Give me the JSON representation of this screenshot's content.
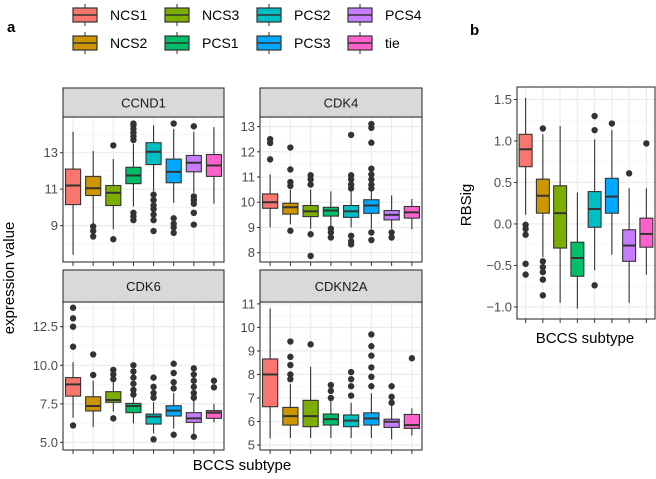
{
  "figure": {
    "panel_a_label": "a",
    "panel_b_label": "b"
  },
  "legend": {
    "placement": "top",
    "items": [
      {
        "label": "NCS1",
        "color": "#F8766D"
      },
      {
        "label": "NCS2",
        "color": "#CD9600"
      },
      {
        "label": "NCS3",
        "color": "#7CAE00"
      },
      {
        "label": "PCS1",
        "color": "#00BE67"
      },
      {
        "label": "PCS2",
        "color": "#00BFC4"
      },
      {
        "label": "PCS3",
        "color": "#00A9FF"
      },
      {
        "label": "PCS4",
        "color": "#C77CFF"
      },
      {
        "label": "tie",
        "color": "#FF61CC"
      }
    ]
  },
  "chart_data": [
    {
      "type": "box",
      "title": "CCND1",
      "panel": "a",
      "ylabel": "expression value",
      "xlabel": "BCCS subtype",
      "categories": [
        "NCS1",
        "NCS2",
        "NCS3",
        "PCS1",
        "PCS2",
        "PCS3",
        "PCS4",
        "tie"
      ],
      "ylim": [
        7.0,
        14.96
      ],
      "yticks": [
        9,
        11,
        13
      ],
      "yticklabels": [
        "9",
        "11",
        "13"
      ],
      "grid": true,
      "boxes": [
        [
          7.4,
          10.15,
          11.2,
          12.1,
          14.15,
          []
        ],
        [
          9.05,
          10.65,
          11.05,
          11.7,
          13.1,
          [
            8.95,
            8.7,
            8.4
          ]
        ],
        [
          8.8,
          10.1,
          10.8,
          11.2,
          12.65,
          [
            13.4,
            8.25
          ]
        ],
        [
          10.05,
          11.3,
          11.75,
          12.2,
          13.5,
          [
            13.7,
            13.9,
            14.1,
            14.3,
            14.5,
            14.6,
            9.7,
            9.5,
            9.3
          ]
        ],
        [
          10.9,
          12.35,
          13.05,
          13.55,
          14.5,
          [
            10.7,
            10.4,
            10.1,
            9.9,
            9.6,
            9.3,
            8.7
          ]
        ],
        [
          10.25,
          11.35,
          11.95,
          12.65,
          14.3,
          [
            14.6,
            9.4,
            9.1,
            8.9,
            8.6
          ]
        ],
        [
          10.8,
          11.95,
          12.45,
          12.85,
          14.15,
          [
            14.45,
            10.6,
            10.4,
            10.2,
            9.7,
            9.05
          ]
        ],
        [
          10.2,
          11.7,
          12.3,
          12.9,
          14.4,
          []
        ]
      ]
    },
    {
      "type": "box",
      "title": "CDK4",
      "panel": "a",
      "categories": [
        "NCS1",
        "NCS2",
        "NCS3",
        "PCS1",
        "PCS2",
        "PCS3",
        "PCS4",
        "tie"
      ],
      "ylim": [
        7.63,
        13.38
      ],
      "yticks": [
        8,
        9,
        10,
        11,
        12,
        13
      ],
      "yticklabels": [
        "8",
        "9",
        "10",
        "11",
        "12",
        "13"
      ],
      "grid": true,
      "boxes": [
        [
          9.0,
          9.76,
          10.0,
          10.33,
          11.1,
          [
            12.5,
            12.35,
            11.7
          ]
        ],
        [
          9.13,
          9.53,
          9.8,
          9.96,
          10.5,
          [
            12.17,
            11.3,
            10.8,
            10.65,
            8.87
          ]
        ],
        [
          8.95,
          9.43,
          9.64,
          9.87,
          10.5,
          [
            11.07,
            10.9,
            10.7,
            8.73,
            7.87
          ]
        ],
        [
          9.0,
          9.45,
          9.67,
          9.8,
          10.43,
          [
            8.95,
            8.8,
            8.6
          ]
        ],
        [
          9.0,
          9.4,
          9.64,
          9.87,
          10.45,
          [
            12.67,
            11.07,
            10.9,
            10.7,
            10.55,
            8.67,
            8.45,
            8.33
          ]
        ],
        [
          8.95,
          9.56,
          9.87,
          10.1,
          10.45,
          [
            13.1,
            12.95,
            12.36,
            11.33,
            11.1,
            10.9,
            10.7,
            10.55,
            8.8,
            8.5
          ]
        ],
        [
          8.95,
          9.3,
          9.5,
          9.67,
          10.27,
          [
            8.8,
            8.6
          ]
        ],
        [
          8.93,
          9.37,
          9.6,
          9.83,
          10.13,
          []
        ]
      ]
    },
    {
      "type": "box",
      "title": "CDK6",
      "panel": "a",
      "categories": [
        "NCS1",
        "NCS2",
        "NCS3",
        "PCS1",
        "PCS2",
        "PCS3",
        "PCS4",
        "tie"
      ],
      "ylim": [
        4.51,
        14.1
      ],
      "yticks": [
        5.0,
        7.5,
        10.0,
        12.5
      ],
      "yticklabels": [
        "5.0",
        "7.5",
        "10.0",
        "12.5"
      ],
      "grid": true,
      "boxes": [
        [
          6.6,
          8.0,
          8.76,
          9.2,
          10.2,
          [
            13.73,
            13.04,
            12.5,
            11.2,
            6.1
          ]
        ],
        [
          6.0,
          7.04,
          7.36,
          7.96,
          9.0,
          [
            10.7,
            9.37
          ]
        ],
        [
          7.0,
          7.6,
          7.75,
          8.29,
          8.9,
          [
            9.7,
            9.4,
            9.1,
            6.56
          ]
        ],
        [
          6.24,
          6.93,
          7.36,
          7.53,
          8.0,
          [
            10.0,
            9.6,
            9.2,
            8.8,
            8.4,
            8.1
          ]
        ],
        [
          5.6,
          6.19,
          6.67,
          6.84,
          7.6,
          [
            9.2,
            8.6,
            8.2,
            7.9,
            5.2
          ]
        ],
        [
          5.9,
          6.71,
          7.06,
          7.38,
          8.2,
          [
            10.1,
            9.5,
            8.9,
            8.5,
            5.5
          ]
        ],
        [
          5.6,
          6.3,
          6.56,
          6.93,
          7.8,
          [
            9.8,
            9.4,
            9.0,
            8.6,
            8.2,
            7.9,
            5.37
          ]
        ],
        [
          6.3,
          6.56,
          6.93,
          7.06,
          7.5,
          [
            9.0,
            8.57
          ]
        ]
      ]
    },
    {
      "type": "box",
      "title": "CDKN2A",
      "panel": "a",
      "categories": [
        "NCS1",
        "NCS2",
        "NCS3",
        "PCS1",
        "PCS2",
        "PCS3",
        "PCS4",
        "tie"
      ],
      "ylim": [
        4.79,
        11.08
      ],
      "yticks": [
        5,
        6,
        7,
        8,
        9,
        10,
        11
      ],
      "yticklabels": [
        "5",
        "6",
        "7",
        "8",
        "9",
        "10",
        "11"
      ],
      "grid": true,
      "boxes": [
        [
          5.28,
          6.63,
          8.0,
          8.66,
          10.8,
          []
        ],
        [
          5.3,
          5.85,
          6.23,
          6.6,
          7.6,
          [
            9.4,
            8.75,
            8.4,
            8.0,
            7.8
          ]
        ],
        [
          5.3,
          5.78,
          6.23,
          6.9,
          8.33,
          [
            9.28
          ]
        ],
        [
          5.3,
          5.85,
          6.1,
          6.32,
          6.9,
          [
            7.55,
            7.3,
            7.0
          ]
        ],
        [
          5.3,
          5.78,
          6.04,
          6.28,
          6.8,
          [
            8.1,
            7.8,
            7.5,
            7.1
          ]
        ],
        [
          5.3,
          5.85,
          6.13,
          6.37,
          7.2,
          [
            9.7,
            9.2,
            8.8,
            8.3,
            7.9,
            7.5
          ]
        ],
        [
          5.25,
          5.75,
          5.99,
          6.1,
          6.7,
          [
            7.5,
            7.05,
            6.8
          ]
        ],
        [
          5.4,
          5.71,
          5.85,
          6.3,
          6.56,
          [
            8.69
          ]
        ]
      ]
    },
    {
      "type": "box",
      "title": "",
      "panel": "b",
      "ylabel": "RBSig",
      "xlabel": "BCCS subtype",
      "categories": [
        "NCS1",
        "NCS2",
        "NCS3",
        "PCS1",
        "PCS2",
        "PCS3",
        "PCS4",
        "tie"
      ],
      "ylim": [
        -1.145,
        1.65
      ],
      "yticks": [
        -1.0,
        -0.5,
        0.0,
        0.5,
        1.0,
        1.5
      ],
      "yticklabels": [
        "−1.0",
        "−0.5",
        "0.0",
        "0.5",
        "1.0",
        "1.5"
      ],
      "grid": true,
      "boxes": [
        [
          0.11,
          0.69,
          0.9,
          1.08,
          1.52,
          [
            -0.01,
            -0.06,
            -0.13,
            -0.48,
            -0.61
          ]
        ],
        [
          -0.4,
          0.13,
          0.34,
          0.54,
          1.08,
          [
            1.15,
            -0.45,
            -0.52,
            -0.58,
            -0.67,
            -0.86
          ]
        ],
        [
          -0.95,
          -0.29,
          0.13,
          0.46,
          1.18,
          []
        ],
        [
          -1.02,
          -0.63,
          -0.41,
          -0.22,
          0.38,
          []
        ],
        [
          -0.56,
          -0.04,
          0.18,
          0.39,
          1.02,
          [
            1.3,
            1.13,
            -0.74
          ]
        ],
        [
          -0.37,
          0.13,
          0.33,
          0.55,
          1.13,
          [
            1.21
          ]
        ],
        [
          -0.95,
          -0.45,
          -0.26,
          -0.07,
          0.43,
          [
            0.61
          ]
        ],
        [
          -0.61,
          -0.28,
          -0.12,
          0.07,
          0.43,
          [
            0.97
          ]
        ]
      ]
    }
  ]
}
